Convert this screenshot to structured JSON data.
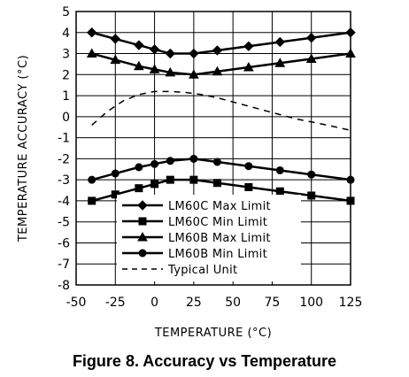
{
  "chart_data": {
    "type": "line",
    "xlabel": "TEMPERATURE (°C)",
    "ylabel": "TEMPERATURE ACCURACY (°C)",
    "xlim": [
      -50,
      125
    ],
    "ylim": [
      -8,
      5
    ],
    "x_ticks": [
      "-50",
      "-25",
      "0",
      "25",
      "50",
      "75",
      "100",
      "125"
    ],
    "y_ticks": [
      "5",
      "4",
      "3",
      "2",
      "1",
      "0",
      "-1",
      "-2",
      "-3",
      "-4",
      "-5",
      "-6",
      "-7",
      "-8"
    ],
    "grid": true,
    "legend_position": "bottom-right",
    "series": [
      {
        "name": "LM60C Max Limit",
        "marker": "diamond",
        "line": "solid",
        "x": [
          -40,
          -25,
          -10,
          0,
          10,
          25,
          40,
          60,
          80,
          100,
          125
        ],
        "y": [
          4.0,
          3.7,
          3.4,
          3.2,
          3.0,
          3.0,
          3.15,
          3.35,
          3.55,
          3.75,
          4.0
        ]
      },
      {
        "name": "LM60C Min Limit",
        "marker": "square",
        "line": "solid",
        "x": [
          -40,
          -25,
          -10,
          0,
          10,
          25,
          40,
          60,
          80,
          100,
          125
        ],
        "y": [
          -4.0,
          -3.7,
          -3.4,
          -3.2,
          -3.0,
          -3.0,
          -3.15,
          -3.35,
          -3.55,
          -3.75,
          -4.0
        ]
      },
      {
        "name": "LM60B Max Limit",
        "marker": "triangle",
        "line": "solid",
        "x": [
          -40,
          -25,
          -10,
          0,
          10,
          25,
          40,
          60,
          80,
          100,
          125
        ],
        "y": [
          3.0,
          2.7,
          2.4,
          2.25,
          2.1,
          2.0,
          2.15,
          2.35,
          2.55,
          2.75,
          3.0
        ]
      },
      {
        "name": "LM60B Min Limit",
        "marker": "circle",
        "line": "solid",
        "x": [
          -40,
          -25,
          -10,
          0,
          10,
          25,
          40,
          60,
          80,
          100,
          125
        ],
        "y": [
          -3.0,
          -2.7,
          -2.4,
          -2.25,
          -2.1,
          -2.0,
          -2.15,
          -2.35,
          -2.55,
          -2.75,
          -3.0
        ]
      },
      {
        "name": "Typical Unit",
        "marker": "none",
        "line": "dashed",
        "x": [
          -40,
          -30,
          -20,
          -10,
          0,
          10,
          20,
          30,
          40,
          50,
          60,
          70,
          80,
          90,
          100,
          110,
          125
        ],
        "y": [
          -0.4,
          0.25,
          0.75,
          1.05,
          1.2,
          1.2,
          1.15,
          1.05,
          0.9,
          0.7,
          0.5,
          0.3,
          0.1,
          -0.1,
          -0.25,
          -0.4,
          -0.65
        ]
      }
    ]
  },
  "caption": "Figure 8. Accuracy vs Temperature"
}
